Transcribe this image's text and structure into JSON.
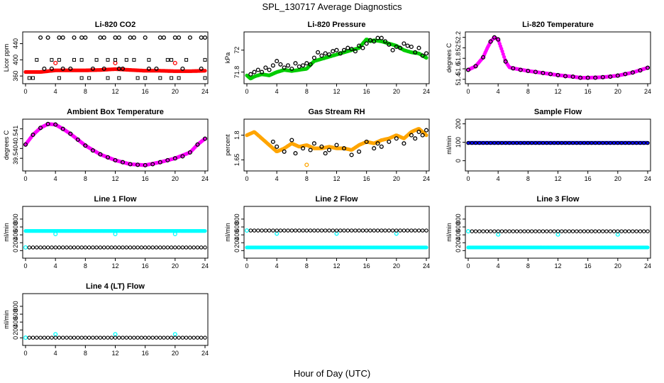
{
  "figure": {
    "title": "SPL_130717  Average Diagnostics",
    "xlabel": "Hour of Day (UTC)"
  },
  "colors": {
    "black": "#000000",
    "red": "#ff0000",
    "green": "#00cc00",
    "magenta": "#ff00ff",
    "orange": "#ffa500",
    "blue": "#0000ff",
    "cyan": "#00ffff"
  },
  "chart_data": [
    {
      "type": "scatter",
      "title": "Li-820 CO2",
      "ylabel": "Licor ppm",
      "xlim": [
        0,
        24
      ],
      "ylim": [
        348,
        462
      ],
      "xticks": [
        0,
        4,
        8,
        12,
        16,
        20,
        24
      ],
      "yticks": [
        360,
        400,
        440
      ],
      "series": [
        {
          "color": "red",
          "style": "band",
          "x": [
            0,
            2,
            4,
            6,
            8,
            10,
            12,
            14,
            16,
            18,
            20,
            22,
            24
          ],
          "values": [
            370,
            370,
            374,
            374,
            374,
            375,
            377,
            375,
            373,
            373,
            372,
            372,
            373
          ]
        },
        {
          "color": "red",
          "style": "circles",
          "x": [
            4,
            12,
            20
          ],
          "values": [
            392,
            392,
            392
          ]
        },
        {
          "color": "black",
          "style": "circles",
          "x": [
            2,
            3,
            4.5,
            5,
            6.5,
            7.5,
            8,
            10,
            10.5,
            12,
            12.5,
            14,
            14.5,
            16,
            18,
            18.5,
            20,
            20.5,
            22,
            23.5,
            24
          ],
          "values": [
            455,
            455,
            455,
            455,
            455,
            455,
            455,
            455,
            455,
            455,
            455,
            455,
            455,
            455,
            455,
            455,
            455,
            455,
            455,
            455,
            455
          ]
        },
        {
          "color": "black",
          "style": "squares",
          "x": [
            1.5,
            3.5,
            4.5,
            6.5,
            7.5,
            9.5,
            11,
            12,
            13.5,
            14.5,
            16.5,
            19,
            19.5,
            21.5,
            24
          ],
          "values": [
            400,
            400,
            400,
            400,
            400,
            400,
            400,
            400,
            400,
            400,
            400,
            400,
            400,
            400,
            400
          ]
        },
        {
          "color": "black",
          "style": "circles",
          "x": [
            2.5,
            3.5,
            5,
            6,
            9,
            10.5,
            12.5,
            13,
            16.5,
            17.5,
            21,
            23.5
          ],
          "values": [
            378,
            378,
            378,
            378,
            378,
            378,
            378,
            378,
            378,
            378,
            378,
            378
          ]
        },
        {
          "color": "black",
          "style": "squares",
          "x": [
            0.5,
            1,
            4.5,
            7.5,
            8.5,
            11,
            12.5,
            15,
            16,
            18,
            19.5,
            20.5,
            24
          ],
          "values": [
            355,
            355,
            355,
            355,
            355,
            355,
            355,
            355,
            355,
            355,
            355,
            355,
            355
          ]
        }
      ]
    },
    {
      "type": "scatter",
      "title": "Li-820 Pressure",
      "ylabel": "kPa",
      "xlim": [
        0,
        24
      ],
      "ylim": [
        71.72,
        72.14
      ],
      "xticks": [
        0,
        4,
        8,
        12,
        16,
        20,
        24
      ],
      "yticks": [
        71.8,
        72.0
      ],
      "series": [
        {
          "color": "green",
          "style": "band",
          "x": [
            0,
            0.5,
            1,
            2,
            3,
            4,
            5,
            6,
            7,
            8,
            9,
            10,
            11,
            12,
            13,
            14,
            15,
            16,
            16.5,
            17,
            18,
            19,
            20,
            21,
            22,
            23,
            24
          ],
          "values": [
            71.77,
            71.74,
            71.76,
            71.78,
            71.77,
            71.8,
            71.82,
            71.81,
            71.82,
            71.83,
            71.9,
            71.92,
            71.94,
            71.96,
            71.98,
            72.0,
            72.02,
            72.1,
            72.08,
            72.09,
            72.08,
            72.06,
            72.04,
            72.0,
            71.98,
            71.97,
            71.93
          ]
        },
        {
          "color": "black",
          "style": "circles",
          "x": [
            0.5,
            1,
            1.5,
            2,
            2.5,
            3,
            3.5,
            4,
            4.5,
            5,
            5.5,
            6,
            6.5,
            7,
            7.5,
            8,
            8.5,
            9,
            9.5,
            10,
            10.5,
            11,
            11.5,
            12,
            12.5,
            13,
            13.5,
            14,
            14.5,
            15,
            15.5,
            16,
            16.5,
            17,
            17.5,
            18,
            18.5,
            19,
            19.5,
            20,
            20.5,
            21,
            21.5,
            22,
            22.5,
            23,
            23.5,
            24
          ],
          "values": [
            71.78,
            71.8,
            71.82,
            71.8,
            71.84,
            71.82,
            71.86,
            71.9,
            71.87,
            71.84,
            71.86,
            71.83,
            71.88,
            71.85,
            71.86,
            71.88,
            71.87,
            71.93,
            71.98,
            71.95,
            71.97,
            71.96,
            71.99,
            72.0,
            71.97,
            72.0,
            72.02,
            72.01,
            71.99,
            72.04,
            72.02,
            72.06,
            72.09,
            72.08,
            72.11,
            72.11,
            72.08,
            72.05,
            72.0,
            72.03,
            72.02,
            72.06,
            72.04,
            72.03,
            71.98,
            72.02,
            71.95,
            71.97
          ]
        }
      ]
    },
    {
      "type": "line",
      "title": "Li-820 Temperature",
      "ylabel": "degrees C",
      "xlim": [
        0,
        24
      ],
      "ylim": [
        51.37,
        52.25
      ],
      "xticks": [
        0,
        4,
        8,
        12,
        16,
        20,
        24
      ],
      "yticks": [
        51.4,
        51.6,
        51.8,
        52.0,
        52.2
      ],
      "series": [
        {
          "color": "magenta",
          "style": "band",
          "x": [
            0,
            1,
            2,
            2.5,
            3,
            3.5,
            4,
            4.5,
            5,
            5.5,
            6,
            8,
            10,
            12,
            14,
            15,
            16,
            18,
            20,
            22,
            24
          ],
          "values": [
            51.58,
            51.65,
            51.82,
            51.98,
            52.12,
            52.2,
            52.16,
            51.96,
            51.74,
            51.63,
            51.61,
            51.56,
            51.52,
            51.48,
            51.45,
            51.43,
            51.43,
            51.44,
            51.47,
            51.53,
            51.62
          ]
        },
        {
          "color": "black",
          "style": "circles",
          "x": [
            0,
            1,
            2,
            3,
            3.5,
            4,
            5,
            6,
            7,
            8,
            9,
            10,
            11,
            12,
            13,
            14,
            15,
            16,
            17,
            18,
            19,
            20,
            21,
            22,
            23,
            24
          ],
          "values": [
            51.58,
            51.65,
            51.82,
            52.12,
            52.2,
            52.16,
            51.74,
            51.61,
            51.58,
            51.56,
            51.54,
            51.52,
            51.5,
            51.48,
            51.46,
            51.45,
            51.43,
            51.43,
            51.43,
            51.44,
            51.45,
            51.47,
            51.5,
            51.53,
            51.57,
            51.62
          ]
        }
      ]
    },
    {
      "type": "line",
      "title": "Ambient Box Temperature",
      "ylabel": "degrees C",
      "xlim": [
        0,
        24
      ],
      "ylim": [
        39.0,
        41.35
      ],
      "xticks": [
        0,
        4,
        8,
        12,
        16,
        20,
        24
      ],
      "yticks": [
        39.5,
        40.0,
        40.5,
        41.0
      ],
      "series": [
        {
          "color": "magenta",
          "style": "band",
          "x": [
            0,
            1,
            2,
            3,
            4,
            5,
            6,
            8,
            10,
            12,
            14,
            16,
            18,
            20,
            22,
            23,
            24
          ],
          "values": [
            40.2,
            40.7,
            41.05,
            41.25,
            41.22,
            41.0,
            40.75,
            40.15,
            39.7,
            39.4,
            39.2,
            39.15,
            39.3,
            39.5,
            39.8,
            40.2,
            40.5
          ]
        },
        {
          "color": "black",
          "style": "circles",
          "x": [
            0,
            1,
            2,
            3,
            4,
            5,
            6,
            7,
            8,
            9,
            10,
            11,
            12,
            13,
            14,
            15,
            16,
            17,
            18,
            19,
            20,
            21,
            22,
            23,
            24
          ],
          "values": [
            40.2,
            40.7,
            41.05,
            41.25,
            41.22,
            41.0,
            40.75,
            40.45,
            40.15,
            39.9,
            39.7,
            39.55,
            39.4,
            39.3,
            39.2,
            39.17,
            39.15,
            39.2,
            39.3,
            39.4,
            39.5,
            39.6,
            39.8,
            40.2,
            40.5
          ]
        }
      ]
    },
    {
      "type": "scatter",
      "title": "Gas Stream RH",
      "ylabel": "percent",
      "xlim": [
        0,
        24
      ],
      "ylim": [
        1.6,
        1.88
      ],
      "xticks": [
        0,
        4,
        8,
        12,
        16,
        20,
        24
      ],
      "yticks": [
        1.65,
        1.8
      ],
      "series": [
        {
          "color": "orange",
          "style": "band",
          "x": [
            0,
            1,
            2,
            3,
            4,
            5,
            6,
            7,
            8,
            9,
            10,
            11,
            12,
            13,
            14,
            15,
            16,
            17,
            18,
            19,
            20,
            21,
            22,
            23,
            24
          ],
          "values": [
            1.8,
            1.82,
            1.78,
            1.74,
            1.7,
            1.72,
            1.75,
            1.73,
            1.74,
            1.72,
            1.72,
            1.73,
            1.72,
            1.72,
            1.71,
            1.74,
            1.76,
            1.75,
            1.77,
            1.78,
            1.8,
            1.78,
            1.82,
            1.84,
            1.8
          ]
        },
        {
          "color": "orange",
          "style": "circles",
          "x": [
            8
          ],
          "values": [
            1.62
          ]
        },
        {
          "color": "black",
          "style": "circles",
          "x": [
            3.5,
            4,
            5,
            6,
            6.5,
            7.5,
            8.5,
            9,
            10,
            10.5,
            11,
            12,
            13,
            14,
            15,
            16,
            17,
            17.5,
            18,
            19,
            20,
            21,
            22,
            22.5,
            23,
            23.5,
            24
          ],
          "values": [
            1.76,
            1.73,
            1.7,
            1.77,
            1.69,
            1.72,
            1.71,
            1.75,
            1.73,
            1.69,
            1.71,
            1.74,
            1.72,
            1.68,
            1.7,
            1.76,
            1.72,
            1.75,
            1.73,
            1.76,
            1.78,
            1.75,
            1.8,
            1.78,
            1.82,
            1.8,
            1.83
          ]
        }
      ]
    },
    {
      "type": "scatter",
      "title": "Sample Flow",
      "ylabel": "ml/min",
      "xlim": [
        0,
        24
      ],
      "ylim": [
        -40,
        210
      ],
      "xticks": [
        0,
        4,
        8,
        12,
        16,
        20,
        24
      ],
      "yticks": [
        0,
        100,
        200
      ],
      "series": [
        {
          "color": "blue",
          "style": "band",
          "x": [
            0,
            24
          ],
          "values": [
            97,
            97
          ]
        },
        {
          "color": "black",
          "style": "dense",
          "x": [
            0,
            24
          ],
          "values": [
            96,
            96
          ]
        }
      ]
    },
    {
      "type": "scatter",
      "title": "Line 1 Flow",
      "ylabel": "ml/min",
      "xlim": [
        0,
        24
      ],
      "ylim": [
        -120,
        1050
      ],
      "xticks": [
        0,
        4,
        8,
        12,
        16,
        20,
        24
      ],
      "yticks": [
        0,
        200,
        400,
        600,
        800
      ],
      "series": [
        {
          "color": "cyan",
          "style": "band",
          "x": [
            0,
            24
          ],
          "values": [
            500,
            500
          ]
        },
        {
          "color": "cyan",
          "style": "circles",
          "x": [
            4,
            12,
            20
          ],
          "values": [
            420,
            420,
            420
          ]
        },
        {
          "color": "cyan",
          "style": "circles",
          "x": [
            0
          ],
          "values": [
            80
          ]
        },
        {
          "color": "black",
          "style": "dense",
          "x": [
            0.5,
            24
          ],
          "values": [
            80,
            80
          ]
        }
      ]
    },
    {
      "type": "scatter",
      "title": "Line 2 Flow",
      "ylabel": "ml/min",
      "xlim": [
        0,
        24
      ],
      "ylim": [
        -120,
        1050
      ],
      "xticks": [
        0,
        4,
        8,
        12,
        16,
        20,
        24
      ],
      "yticks": [
        0,
        200,
        400,
        600,
        800
      ],
      "series": [
        {
          "color": "cyan",
          "style": "band",
          "x": [
            0,
            24
          ],
          "values": [
            80,
            80
          ]
        },
        {
          "color": "cyan",
          "style": "circles",
          "x": [
            0,
            4,
            12,
            20
          ],
          "values": [
            510,
            430,
            430,
            430
          ]
        },
        {
          "color": "black",
          "style": "dense",
          "x": [
            0.5,
            24
          ],
          "values": [
            510,
            510
          ]
        }
      ]
    },
    {
      "type": "scatter",
      "title": "Line 3 Flow",
      "ylabel": "ml/min",
      "xlim": [
        0,
        24
      ],
      "ylim": [
        -120,
        1050
      ],
      "xticks": [
        0,
        4,
        8,
        12,
        16,
        20,
        24
      ],
      "yticks": [
        0,
        200,
        400,
        600,
        800
      ],
      "series": [
        {
          "color": "cyan",
          "style": "band",
          "x": [
            0,
            24
          ],
          "values": [
            80,
            80
          ]
        },
        {
          "color": "cyan",
          "style": "circles",
          "x": [
            0,
            4,
            12,
            20
          ],
          "values": [
            490,
            410,
            410,
            410
          ]
        },
        {
          "color": "black",
          "style": "dense",
          "x": [
            0.5,
            24
          ],
          "values": [
            490,
            490
          ]
        }
      ]
    },
    {
      "type": "scatter",
      "title": "Line 4 (LT) Flow",
      "ylabel": "ml/min",
      "xlim": [
        0,
        24
      ],
      "ylim": [
        -120,
        1050
      ],
      "xticks": [
        0,
        4,
        8,
        12,
        16,
        20,
        24
      ],
      "yticks": [
        0,
        200,
        400,
        600,
        800
      ],
      "series": [
        {
          "color": "cyan",
          "style": "circles",
          "x": [
            0,
            4,
            12,
            20
          ],
          "values": [
            5,
            90,
            90,
            90
          ]
        },
        {
          "color": "black",
          "style": "dense",
          "x": [
            0.5,
            24
          ],
          "values": [
            5,
            5
          ]
        }
      ]
    }
  ]
}
